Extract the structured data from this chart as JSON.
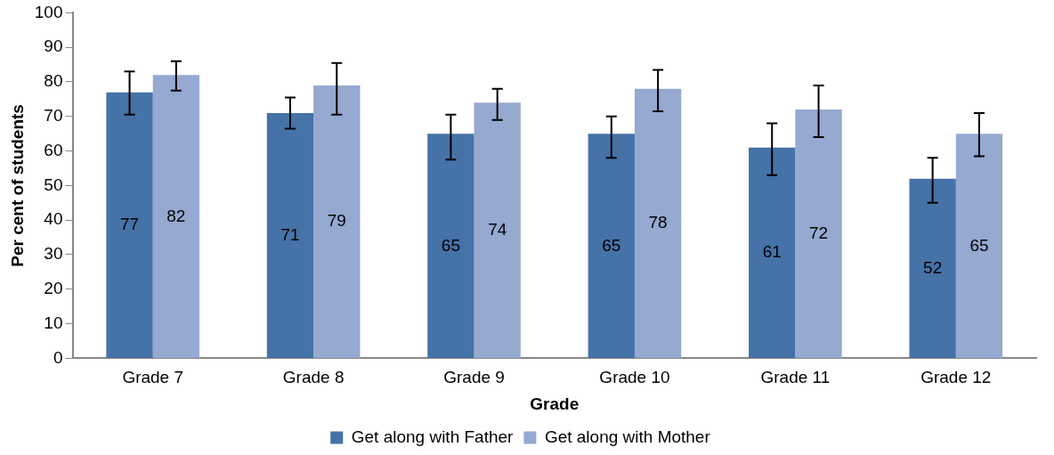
{
  "chart_data": {
    "type": "bar",
    "xlabel": "Grade",
    "ylabel": "Per cent of students",
    "categories": [
      "Grade 7",
      "Grade 8",
      "Grade 9",
      "Grade 10",
      "Grade 11",
      "Grade 12"
    ],
    "series": [
      {
        "name": "Get along with Father",
        "color": "#4572a7",
        "values": [
          77,
          71,
          65,
          65,
          61,
          52
        ],
        "errors": [
          [
            70.5,
            83
          ],
          [
            66.5,
            75.5
          ],
          [
            57.5,
            70.5
          ],
          [
            58,
            70
          ],
          [
            53,
            68
          ],
          [
            45,
            58
          ]
        ]
      },
      {
        "name": "Get along with Mother",
        "color": "#95a9d1",
        "values": [
          82,
          79,
          74,
          78,
          72,
          65
        ],
        "errors": [
          [
            77.5,
            86
          ],
          [
            70.5,
            85.5
          ],
          [
            69,
            78
          ],
          [
            71.5,
            83.5
          ],
          [
            64,
            79
          ],
          [
            58.5,
            71
          ]
        ]
      }
    ],
    "ylim": [
      0,
      100
    ],
    "yticks": [
      0,
      10,
      20,
      30,
      40,
      50,
      60,
      70,
      80,
      90,
      100
    ],
    "grid": false,
    "legend": "bottom",
    "data_labels": true
  }
}
